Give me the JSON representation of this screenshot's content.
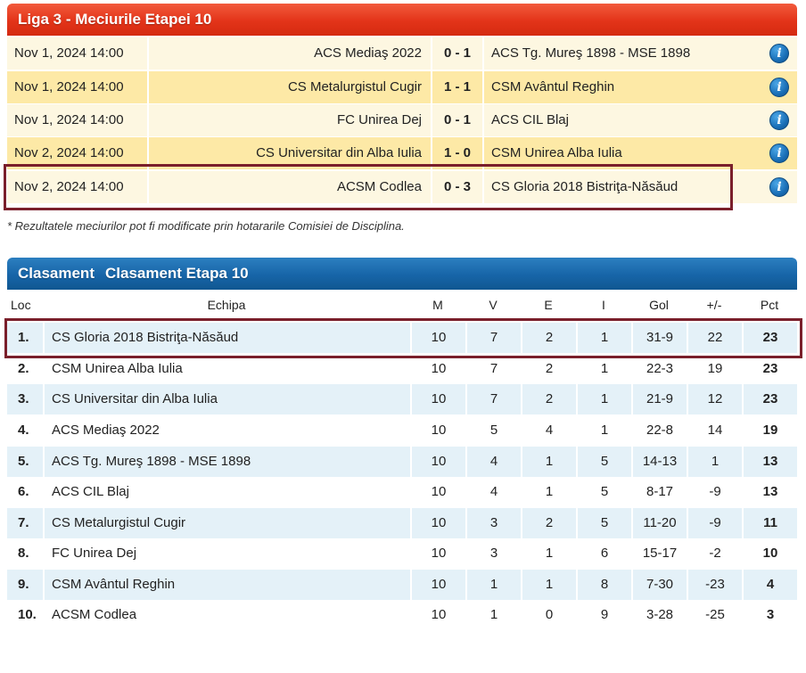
{
  "matches_section": {
    "title": "Liga 3 - Meciurile Etapei 10",
    "rows": [
      {
        "date": "Nov 1, 2024 14:00",
        "home": "ACS Mediaş 2022",
        "score": "0 - 1",
        "away": "ACS Tg. Mureş 1898 - MSE 1898",
        "info_icon": "info-icon"
      },
      {
        "date": "Nov 1, 2024 14:00",
        "home": "CS Metalurgistul Cugir",
        "score": "1 - 1",
        "away": "CSM Avântul Reghin",
        "info_icon": "info-icon"
      },
      {
        "date": "Nov 1, 2024 14:00",
        "home": "FC Unirea Dej",
        "score": "0 - 1",
        "away": "ACS CIL Blaj",
        "info_icon": "info-icon"
      },
      {
        "date": "Nov 2, 2024 14:00",
        "home": "CS Universitar din Alba Iulia",
        "score": "1 - 0",
        "away": "CSM Unirea Alba Iulia",
        "info_icon": "info-icon"
      },
      {
        "date": "Nov 2, 2024 14:00",
        "home": "ACSM Codlea",
        "score": "0 - 3",
        "away": "CS Gloria 2018 Bistriţa-Năsăud",
        "info_icon": "info-icon"
      }
    ],
    "footnote": "* Rezultatele meciurilor pot fi modificate prin hotararile Comisiei de Disciplina."
  },
  "standings_section": {
    "title": "Clasament",
    "subtitle": "Clasament Etapa 10",
    "columns": {
      "loc": "Loc",
      "team": "Echipa",
      "m": "M",
      "v": "V",
      "e": "E",
      "i": "I",
      "gol": "Gol",
      "diff": "+/-",
      "pct": "Pct"
    },
    "rows": [
      {
        "loc": "1.",
        "team": "CS Gloria 2018 Bistriţa-Năsăud",
        "m": "10",
        "v": "7",
        "e": "2",
        "i": "1",
        "gol": "31-9",
        "diff": "22",
        "pct": "23"
      },
      {
        "loc": "2.",
        "team": "CSM Unirea Alba Iulia",
        "m": "10",
        "v": "7",
        "e": "2",
        "i": "1",
        "gol": "22-3",
        "diff": "19",
        "pct": "23"
      },
      {
        "loc": "3.",
        "team": "CS Universitar din Alba Iulia",
        "m": "10",
        "v": "7",
        "e": "2",
        "i": "1",
        "gol": "21-9",
        "diff": "12",
        "pct": "23"
      },
      {
        "loc": "4.",
        "team": "ACS Mediaş 2022",
        "m": "10",
        "v": "5",
        "e": "4",
        "i": "1",
        "gol": "22-8",
        "diff": "14",
        "pct": "19"
      },
      {
        "loc": "5.",
        "team": "ACS Tg. Mureş 1898 - MSE 1898",
        "m": "10",
        "v": "4",
        "e": "1",
        "i": "5",
        "gol": "14-13",
        "diff": "1",
        "pct": "13"
      },
      {
        "loc": "6.",
        "team": "ACS CIL Blaj",
        "m": "10",
        "v": "4",
        "e": "1",
        "i": "5",
        "gol": "8-17",
        "diff": "-9",
        "pct": "13"
      },
      {
        "loc": "7.",
        "team": "CS Metalurgistul Cugir",
        "m": "10",
        "v": "3",
        "e": "2",
        "i": "5",
        "gol": "11-20",
        "diff": "-9",
        "pct": "11"
      },
      {
        "loc": "8.",
        "team": "FC Unirea Dej",
        "m": "10",
        "v": "3",
        "e": "1",
        "i": "6",
        "gol": "15-17",
        "diff": "-2",
        "pct": "10"
      },
      {
        "loc": "9.",
        "team": "CSM Avântul Reghin",
        "m": "10",
        "v": "1",
        "e": "1",
        "i": "8",
        "gol": "7-30",
        "diff": "-23",
        "pct": "4"
      },
      {
        "loc": "10.",
        "team": "ACSM Codlea",
        "m": "10",
        "v": "1",
        "e": "0",
        "i": "9",
        "gol": "3-28",
        "diff": "-25",
        "pct": "3"
      }
    ]
  },
  "colors": {
    "matches_header": "#e33419",
    "standings_header": "#1765a8",
    "highlight_border": "#7a1f2b",
    "match_row_light": "#fdf7e1",
    "match_row_dark": "#fde9a6",
    "standings_row_shade": "#e4f1f8"
  }
}
